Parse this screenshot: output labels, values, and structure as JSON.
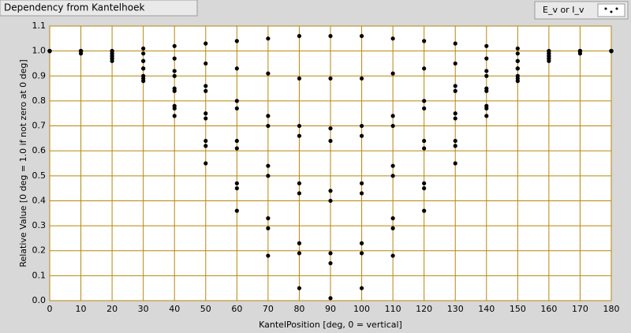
{
  "chart_data": {
    "type": "scatter",
    "title": "Dependency from Kantelhoek",
    "x_label": "KantelPosition [deg, 0 = vertical]",
    "y_label": "Relative Value [0 deg = 1.0 if not zero at 0 deg]",
    "xlim": [
      0,
      180
    ],
    "ylim": [
      0,
      1.1
    ],
    "xticks": [
      0,
      10,
      20,
      30,
      40,
      50,
      60,
      70,
      80,
      90,
      100,
      110,
      120,
      130,
      140,
      150,
      160,
      170,
      180
    ],
    "yticks": [
      {
        "value": 0,
        "label": "0.0"
      },
      0.1,
      0.2,
      0.3,
      0.4,
      0.5,
      0.6,
      0.7,
      0.8,
      0.9,
      {
        "value": 1,
        "label": "1.0"
      },
      1.1
    ],
    "grid": true,
    "legend": "top-right",
    "series": [
      {
        "name": "E_v or I_v",
        "color": "#000000",
        "x": [
          0,
          10,
          20,
          30,
          40,
          50,
          60,
          70,
          80,
          90,
          100,
          110,
          120,
          130,
          140,
          150,
          160,
          170,
          180,
          0,
          10,
          20,
          30,
          40,
          50,
          60,
          70,
          80,
          90,
          100,
          110,
          120,
          130,
          140,
          150,
          160,
          170,
          180,
          0,
          10,
          20,
          30,
          40,
          50,
          60,
          70,
          80,
          90,
          100,
          110,
          120,
          130,
          140,
          150,
          160,
          170,
          180,
          0,
          10,
          20,
          30,
          40,
          50,
          60,
          70,
          80,
          90,
          100,
          110,
          120,
          130,
          140,
          150,
          160,
          170,
          180,
          0,
          10,
          20,
          30,
          40,
          50,
          60,
          70,
          80,
          90,
          100,
          110,
          120,
          130,
          140,
          150,
          160,
          170,
          180,
          0,
          10,
          20,
          30,
          40,
          50,
          60,
          70,
          80,
          90,
          100,
          110,
          120,
          130,
          140,
          150,
          160,
          170,
          180,
          0,
          10,
          20,
          30,
          40,
          50,
          60,
          70,
          80,
          90,
          100,
          110,
          120,
          130,
          140,
          150,
          160,
          170,
          180,
          0,
          10,
          20,
          30,
          40,
          50,
          60,
          70,
          80,
          90,
          100,
          110,
          120,
          130,
          140,
          150,
          160,
          170,
          180,
          0,
          10,
          20,
          30,
          40,
          50,
          60,
          70,
          80,
          90,
          100,
          110,
          120,
          130,
          140,
          150,
          160,
          170,
          180
        ],
        "values": [
          1.0,
          1.0,
          1.0,
          1.01,
          1.02,
          1.03,
          1.04,
          1.05,
          1.06,
          1.06,
          1.06,
          1.05,
          1.04,
          1.03,
          1.02,
          1.01,
          1.0,
          1.0,
          1.0,
          1.0,
          1.0,
          1.0,
          0.99,
          0.97,
          0.95,
          0.93,
          0.91,
          0.89,
          0.89,
          0.89,
          0.91,
          0.93,
          0.95,
          0.97,
          0.99,
          1.0,
          1.0,
          1.0,
          1.0,
          1.0,
          0.99,
          0.96,
          0.92,
          0.86,
          0.8,
          0.74,
          0.7,
          0.69,
          0.7,
          0.74,
          0.8,
          0.86,
          0.92,
          0.96,
          0.99,
          1.0,
          1.0,
          1.0,
          1.0,
          0.99,
          0.96,
          0.9,
          0.84,
          0.77,
          0.7,
          0.66,
          0.64,
          0.66,
          0.7,
          0.77,
          0.84,
          0.9,
          0.96,
          0.99,
          1.0,
          1.0,
          1.0,
          1.0,
          0.98,
          0.93,
          0.85,
          0.75,
          0.64,
          0.54,
          0.47,
          0.44,
          0.47,
          0.54,
          0.64,
          0.75,
          0.85,
          0.93,
          0.98,
          1.0,
          1.0,
          1.0,
          1.0,
          0.98,
          0.93,
          0.84,
          0.73,
          0.61,
          0.5,
          0.43,
          0.4,
          0.43,
          0.5,
          0.61,
          0.73,
          0.84,
          0.93,
          0.98,
          1.0,
          1.0,
          1.0,
          1.0,
          0.97,
          0.9,
          0.78,
          0.64,
          0.47,
          0.33,
          0.23,
          0.19,
          0.23,
          0.33,
          0.47,
          0.64,
          0.78,
          0.9,
          0.97,
          1.0,
          1.0,
          1.0,
          1.0,
          0.97,
          0.89,
          0.77,
          0.62,
          0.45,
          0.29,
          0.19,
          0.15,
          0.19,
          0.29,
          0.45,
          0.62,
          0.77,
          0.89,
          0.97,
          1.0,
          1.0,
          1.0,
          0.99,
          0.96,
          0.88,
          0.74,
          0.55,
          0.36,
          0.18,
          0.05,
          0.01,
          0.05,
          0.18,
          0.36,
          0.55,
          0.74,
          0.88,
          0.96,
          0.99,
          1.0
        ]
      }
    ]
  }
}
